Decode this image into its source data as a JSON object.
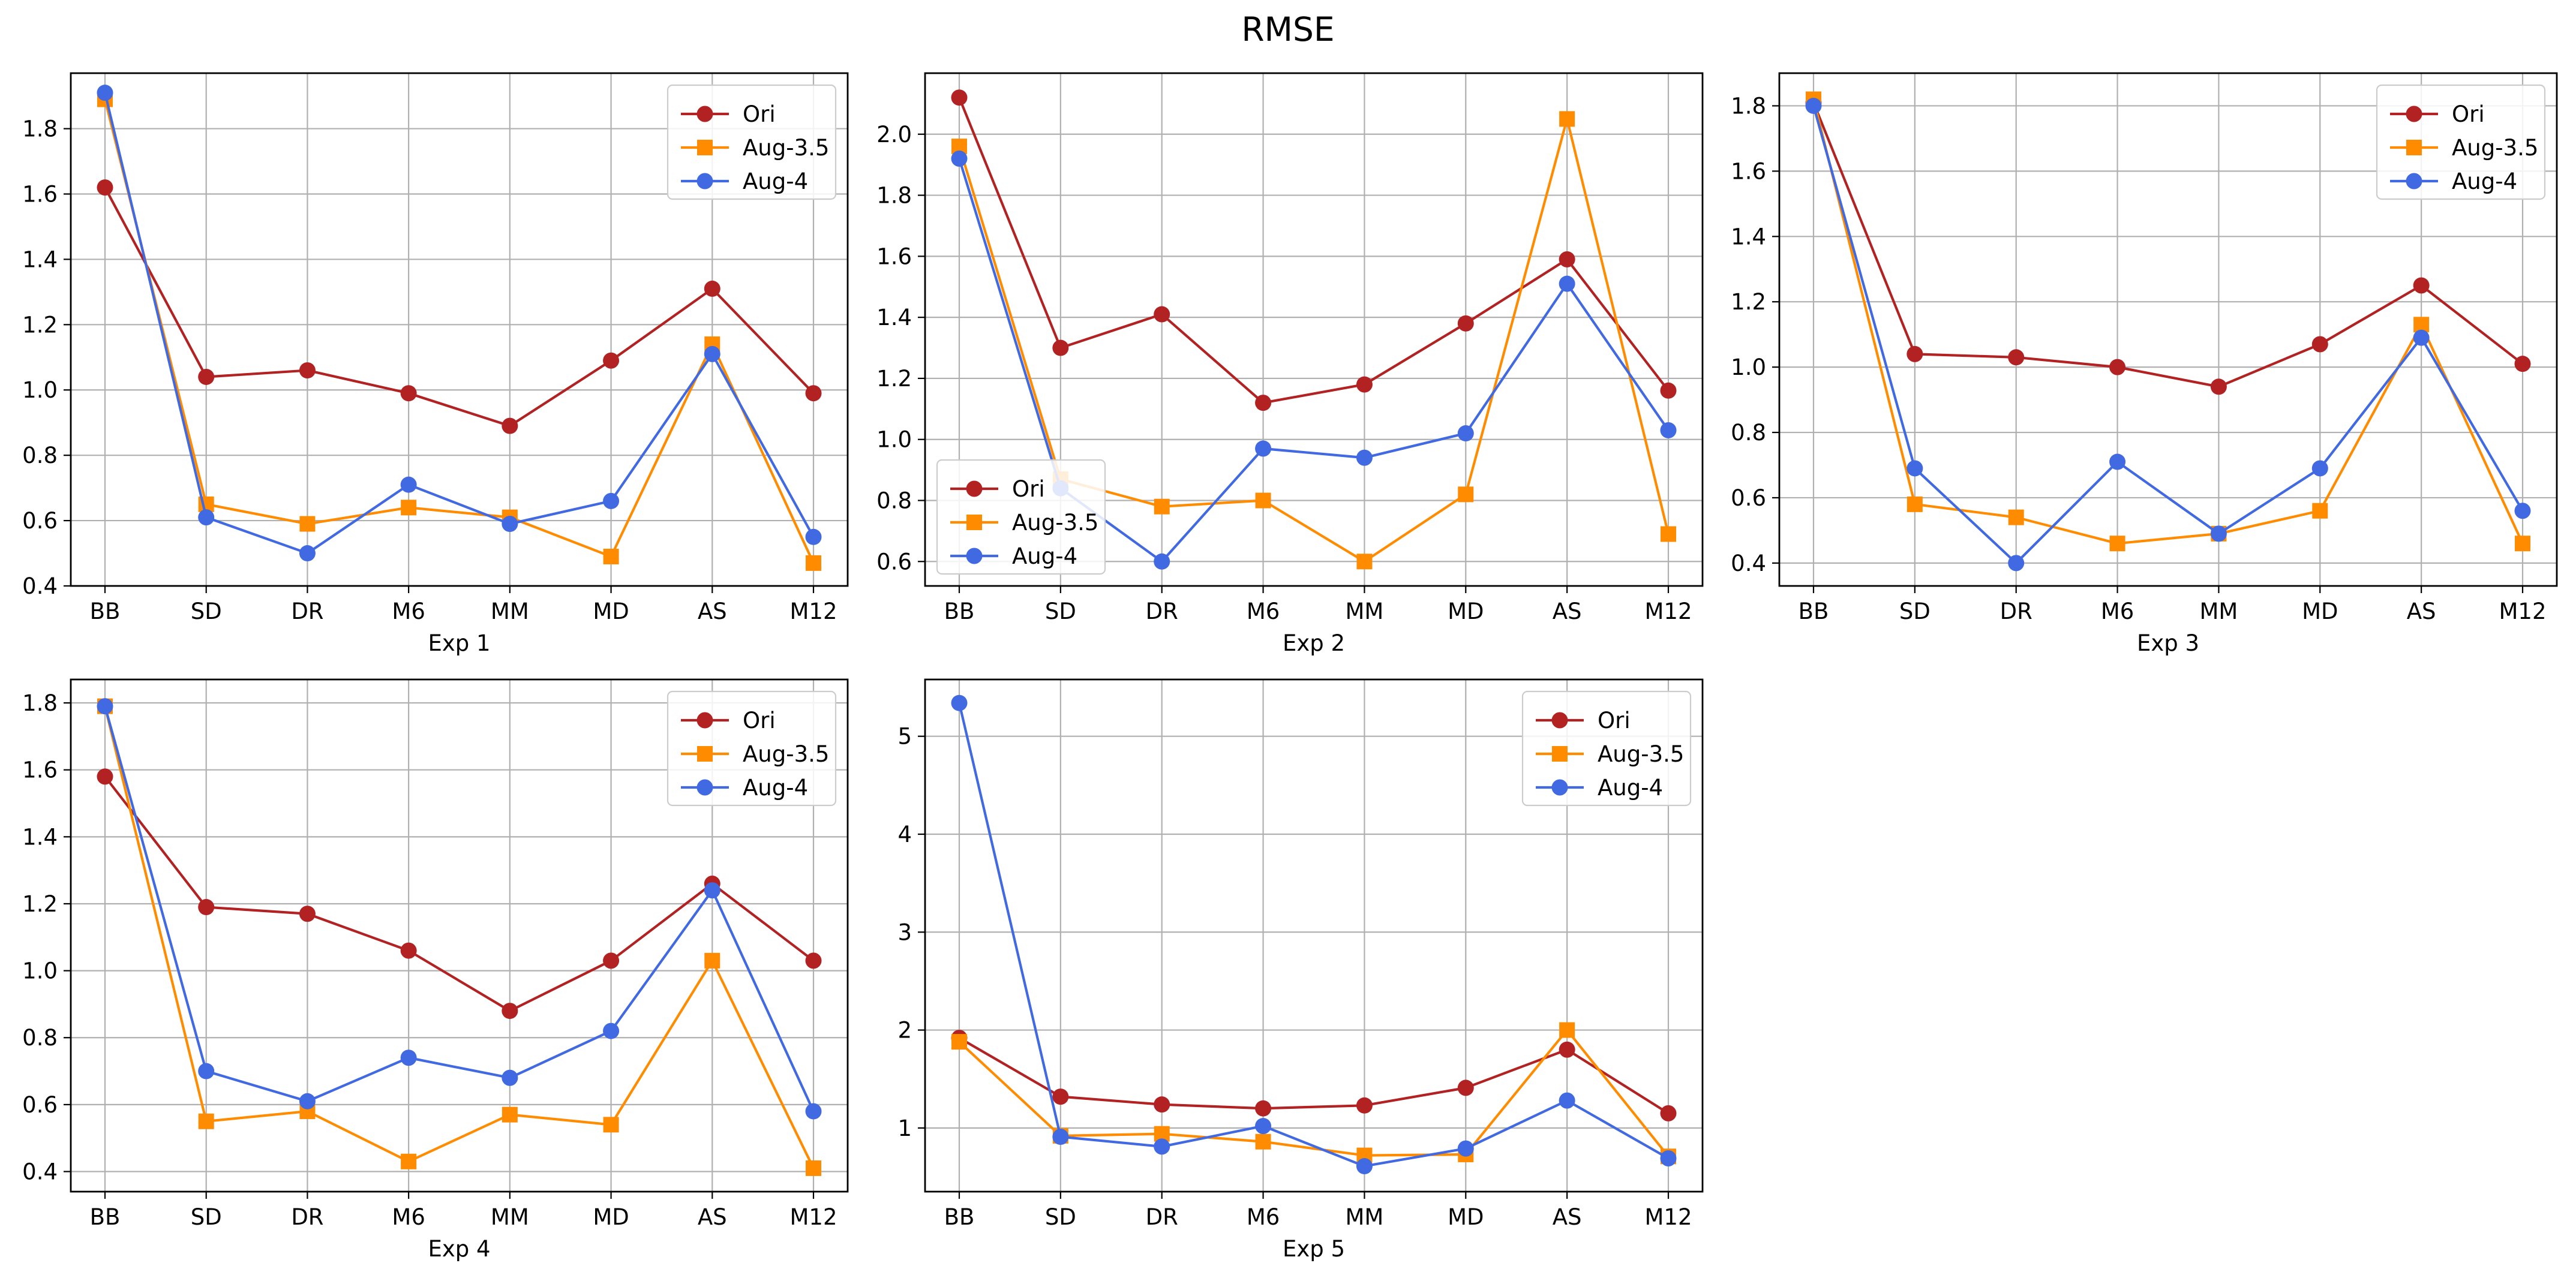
{
  "title": "RMSE",
  "categories": [
    "BB",
    "SD",
    "DR",
    "M6",
    "MM",
    "MD",
    "AS",
    "M12"
  ],
  "series_styles": [
    {
      "name": "Ori",
      "color": "#b22222",
      "marker": "circle"
    },
    {
      "name": "Aug-3.5",
      "color": "#ff8c00",
      "marker": "square"
    },
    {
      "name": "Aug-4",
      "color": "#4169e1",
      "marker": "circle"
    }
  ],
  "chart_data": [
    {
      "type": "line",
      "title": "",
      "xlabel": "Exp 1",
      "ylabel": "",
      "categories": [
        "BB",
        "SD",
        "DR",
        "M6",
        "MM",
        "MD",
        "AS",
        "M12"
      ],
      "ylim": [
        0.4,
        1.97
      ],
      "yticks": [
        0.4,
        0.6,
        0.8,
        1.0,
        1.2,
        1.4,
        1.6,
        1.8
      ],
      "ytick_labels": [
        "0.4",
        "0.6",
        "0.8",
        "1.0",
        "1.2",
        "1.4",
        "1.6",
        "1.8"
      ],
      "grid": true,
      "legend": "upper right",
      "series": [
        {
          "name": "Ori",
          "values": [
            1.62,
            1.04,
            1.06,
            0.99,
            0.89,
            1.09,
            1.31,
            0.99
          ]
        },
        {
          "name": "Aug-3.5",
          "values": [
            1.89,
            0.65,
            0.59,
            0.64,
            0.61,
            0.49,
            1.14,
            0.47
          ]
        },
        {
          "name": "Aug-4",
          "values": [
            1.91,
            0.61,
            0.5,
            0.71,
            0.59,
            0.66,
            1.11,
            0.55
          ]
        }
      ]
    },
    {
      "type": "line",
      "title": "",
      "xlabel": "Exp 2",
      "ylabel": "",
      "categories": [
        "BB",
        "SD",
        "DR",
        "M6",
        "MM",
        "MD",
        "AS",
        "M12"
      ],
      "ylim": [
        0.52,
        2.2
      ],
      "yticks": [
        0.6,
        0.8,
        1.0,
        1.2,
        1.4,
        1.6,
        1.8,
        2.0
      ],
      "ytick_labels": [
        "0.6",
        "0.8",
        "1.0",
        "1.2",
        "1.4",
        "1.6",
        "1.8",
        "2.0"
      ],
      "grid": true,
      "legend": "lower left",
      "series": [
        {
          "name": "Ori",
          "values": [
            2.12,
            1.3,
            1.41,
            1.12,
            1.18,
            1.38,
            1.59,
            1.16
          ]
        },
        {
          "name": "Aug-3.5",
          "values": [
            1.96,
            0.87,
            0.78,
            0.8,
            0.6,
            0.82,
            2.05,
            0.69
          ]
        },
        {
          "name": "Aug-4",
          "values": [
            1.92,
            0.84,
            0.6,
            0.97,
            0.94,
            1.02,
            1.51,
            1.03
          ]
        }
      ]
    },
    {
      "type": "line",
      "title": "",
      "xlabel": "Exp 3",
      "ylabel": "",
      "categories": [
        "BB",
        "SD",
        "DR",
        "M6",
        "MM",
        "MD",
        "AS",
        "M12"
      ],
      "ylim": [
        0.33,
        1.9
      ],
      "yticks": [
        0.4,
        0.6,
        0.8,
        1.0,
        1.2,
        1.4,
        1.6,
        1.8
      ],
      "ytick_labels": [
        "0.4",
        "0.6",
        "0.8",
        "1.0",
        "1.2",
        "1.4",
        "1.6",
        "1.8"
      ],
      "grid": true,
      "legend": "upper right",
      "series": [
        {
          "name": "Ori",
          "values": [
            1.81,
            1.04,
            1.03,
            1.0,
            0.94,
            1.07,
            1.25,
            1.01
          ]
        },
        {
          "name": "Aug-3.5",
          "values": [
            1.82,
            0.58,
            0.54,
            0.46,
            0.49,
            0.56,
            1.13,
            0.46
          ]
        },
        {
          "name": "Aug-4",
          "values": [
            1.8,
            0.69,
            0.4,
            0.71,
            0.49,
            0.69,
            1.09,
            0.56
          ]
        }
      ]
    },
    {
      "type": "line",
      "title": "",
      "xlabel": "Exp 4",
      "ylabel": "",
      "categories": [
        "BB",
        "SD",
        "DR",
        "M6",
        "MM",
        "MD",
        "AS",
        "M12"
      ],
      "ylim": [
        0.34,
        1.87
      ],
      "yticks": [
        0.4,
        0.6,
        0.8,
        1.0,
        1.2,
        1.4,
        1.6,
        1.8
      ],
      "ytick_labels": [
        "0.4",
        "0.6",
        "0.8",
        "1.0",
        "1.2",
        "1.4",
        "1.6",
        "1.8"
      ],
      "grid": true,
      "legend": "upper right",
      "series": [
        {
          "name": "Ori",
          "values": [
            1.58,
            1.19,
            1.17,
            1.06,
            0.88,
            1.03,
            1.26,
            1.03
          ]
        },
        {
          "name": "Aug-3.5",
          "values": [
            1.79,
            0.55,
            0.58,
            0.43,
            0.57,
            0.54,
            1.03,
            0.41
          ]
        },
        {
          "name": "Aug-4",
          "values": [
            1.79,
            0.7,
            0.61,
            0.74,
            0.68,
            0.82,
            1.24,
            0.58
          ]
        }
      ]
    },
    {
      "type": "line",
      "title": "",
      "xlabel": "Exp 5",
      "ylabel": "",
      "categories": [
        "BB",
        "SD",
        "DR",
        "M6",
        "MM",
        "MD",
        "AS",
        "M12"
      ],
      "ylim": [
        0.35,
        5.58
      ],
      "yticks": [
        1,
        2,
        3,
        4,
        5
      ],
      "ytick_labels": [
        "1",
        "2",
        "3",
        "4",
        "5"
      ],
      "grid": true,
      "legend": "upper right",
      "series": [
        {
          "name": "Ori",
          "values": [
            1.92,
            1.32,
            1.24,
            1.2,
            1.23,
            1.41,
            1.8,
            1.15
          ]
        },
        {
          "name": "Aug-3.5",
          "values": [
            1.88,
            0.92,
            0.94,
            0.86,
            0.72,
            0.73,
            2.0,
            0.71
          ]
        },
        {
          "name": "Aug-4",
          "values": [
            5.34,
            0.91,
            0.81,
            1.02,
            0.61,
            0.79,
            1.28,
            0.69
          ]
        }
      ]
    }
  ]
}
